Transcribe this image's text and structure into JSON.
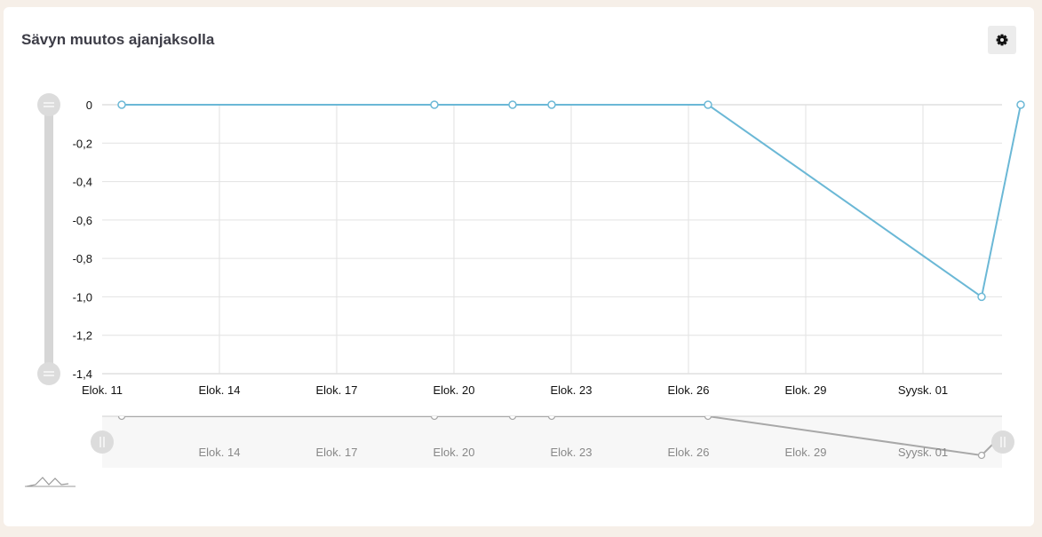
{
  "card": {
    "title": "Sävyn muutos ajanjaksolla",
    "settings_icon": "gear-icon",
    "mini_chart_icon": "area-chart-icon"
  },
  "colors": {
    "series": "#6bb8d6",
    "navigator_series": "#a8a8a8",
    "grid": "#e2e2e2",
    "handle": "#d6d6d6"
  },
  "chart_data": {
    "type": "line",
    "title": "Sävyn muutos ajanjaksolla",
    "xlabel": "",
    "ylabel": "",
    "x_ticks": [
      "Elok. 11",
      "Elok. 14",
      "Elok. 17",
      "Elok. 20",
      "Elok. 23",
      "Elok. 26",
      "Elok. 29",
      "Syysk. 01"
    ],
    "y_ticks": [
      "0",
      "-0,2",
      "-0,4",
      "-0,6",
      "-0,8",
      "-1,0",
      "-1,2",
      "-1,4"
    ],
    "ylim": [
      -1.4,
      0
    ],
    "xlim": [
      "2025-08-11",
      "2025-09-03"
    ],
    "grid": true,
    "series": [
      {
        "points": [
          {
            "x": "2025-08-11",
            "y": 0
          },
          {
            "x": "2025-08-19",
            "y": 0
          },
          {
            "x": "2025-08-21",
            "y": 0
          },
          {
            "x": "2025-08-22",
            "y": 0
          },
          {
            "x": "2025-08-26",
            "y": 0
          },
          {
            "x": "2025-09-02",
            "y": -1.0
          },
          {
            "x": "2025-09-03",
            "y": 0
          }
        ]
      }
    ],
    "navigator": {
      "x_ticks": [
        "Elok. 14",
        "Elok. 17",
        "Elok. 20",
        "Elok. 23",
        "Elok. 26",
        "Elok. 29",
        "Syysk. 01"
      ]
    }
  }
}
